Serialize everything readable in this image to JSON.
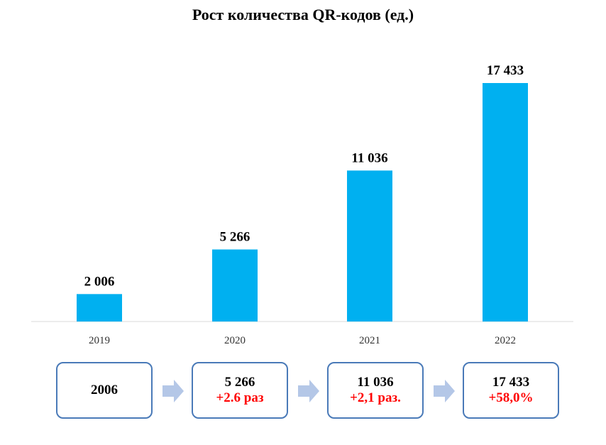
{
  "chart_data": {
    "type": "bar",
    "title": "Рост количества QR-кодов (ед.)",
    "categories": [
      "2019",
      "2020",
      "2021",
      "2022"
    ],
    "values": [
      2006,
      5266,
      11036,
      17433
    ],
    "data_labels": [
      "2 006",
      "5 266",
      "11 036",
      "17 433"
    ],
    "xlabel": "",
    "ylabel": "",
    "ylim": [
      0,
      18000
    ],
    "grid": false,
    "legend": "none",
    "bar_color": "#00b0f0"
  },
  "summary_boxes": [
    {
      "value": "2006",
      "change": ""
    },
    {
      "value": "5 266",
      "change": "+2.6 раз"
    },
    {
      "value": "11 036",
      "change": "+2,1 раз."
    },
    {
      "value": "17 433",
      "change": "+58,0%"
    }
  ],
  "colors": {
    "change_text": "#ff0000",
    "box_border": "#4a7ab8",
    "arrow": "#b4c7e7",
    "axis": "#d9d9d9"
  },
  "icons": {
    "arrow": "arrow-right-icon"
  }
}
